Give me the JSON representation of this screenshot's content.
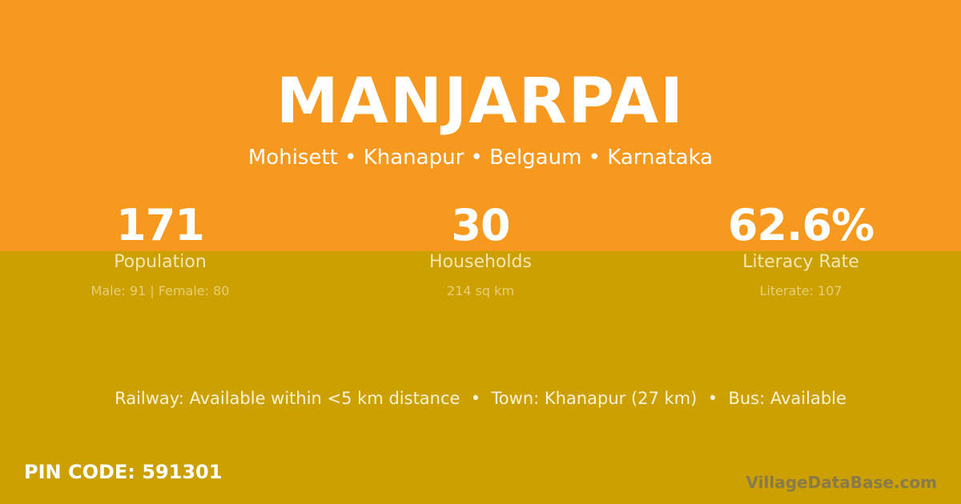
{
  "village": {
    "name": "MANJARPAI",
    "location": "Mohisett • Khanapur • Belgaum • Karnataka"
  },
  "stats": [
    {
      "value": "171",
      "label": "Population",
      "detail": "Male: 91 | Female: 80"
    },
    {
      "value": "30",
      "label": "Households",
      "detail": "214 sq km"
    },
    {
      "value": "62.6%",
      "label": "Literacy Rate",
      "detail": "Literate: 107"
    }
  ],
  "access": "Railway: Available within <5 km distance  •  Town: Khanapur (27 km)  •  Bus: Available",
  "pin": "PIN CODE: 591301",
  "brand": "VillageDataBase.com",
  "colors": {
    "top": "#f7991f",
    "bottom": "#cca000"
  }
}
